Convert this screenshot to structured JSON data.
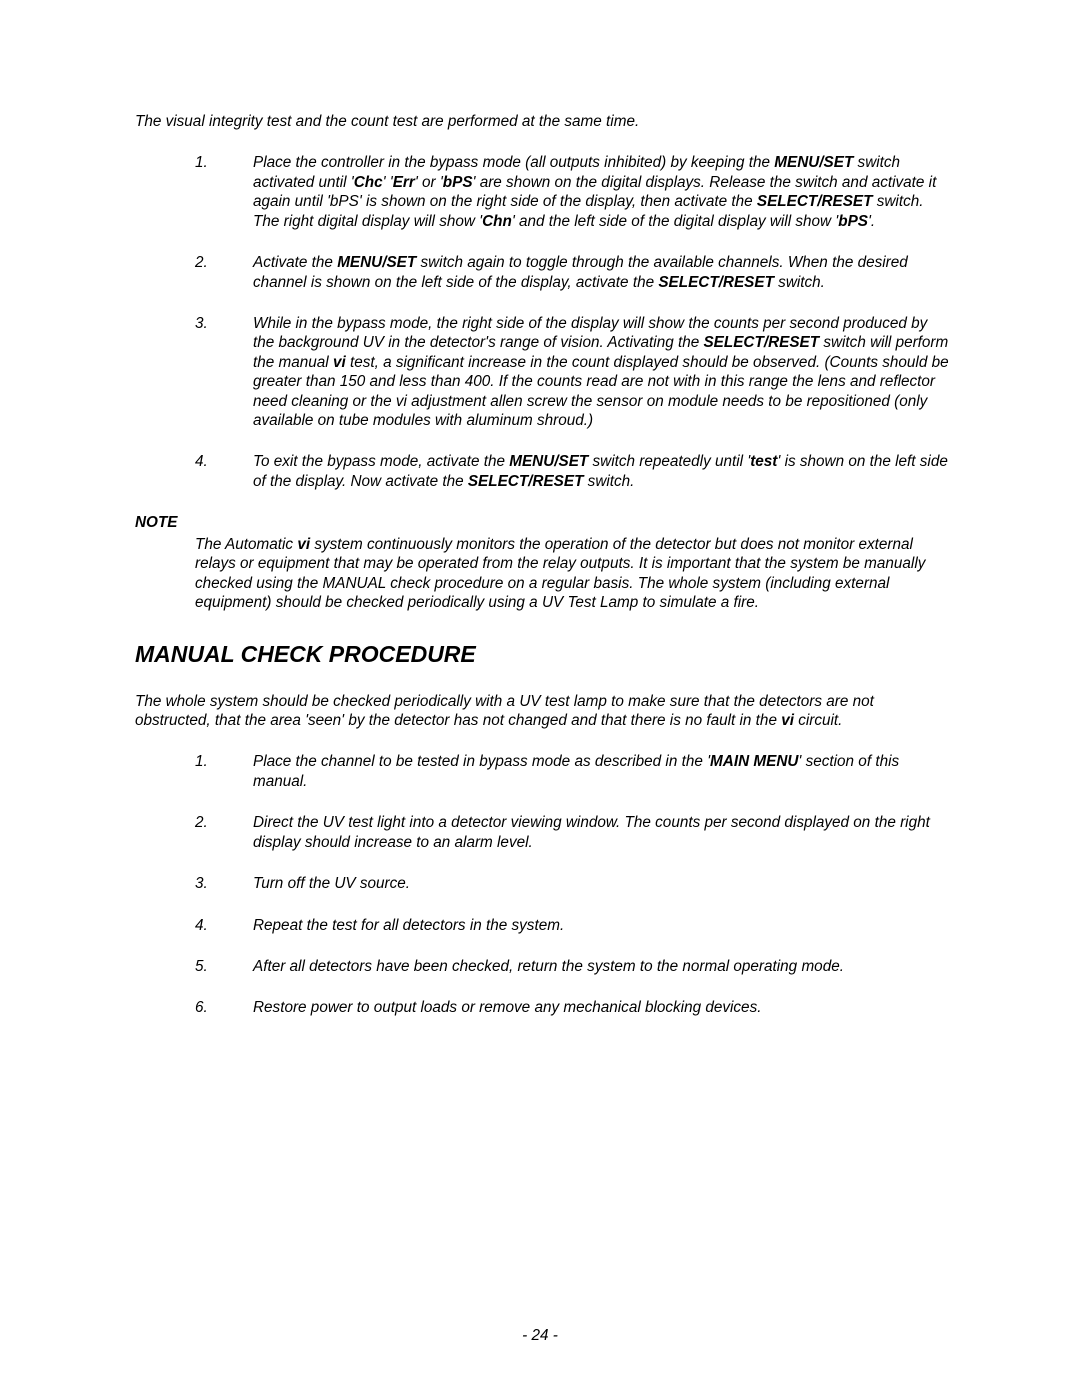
{
  "intro": "The visual integrity test and the count test are performed at the same time.",
  "list1": [
    {
      "num": "1.",
      "segments": [
        {
          "t": "Place the controller in the bypass mode (all outputs inhibited) by keeping the "
        },
        {
          "t": "MENU/SET",
          "b": true
        },
        {
          "t": " switch activated until '"
        },
        {
          "t": "Chc",
          "b": true
        },
        {
          "t": "' '"
        },
        {
          "t": "Err",
          "b": true
        },
        {
          "t": "' or '"
        },
        {
          "t": "bPS",
          "b": true
        },
        {
          "t": "' are shown on the digital displays. Release the switch and activate it again until 'bPS' is shown on the right side of the display, then activate the "
        },
        {
          "t": "SELECT/RESET",
          "b": true
        },
        {
          "t": " switch.  The right digital display  will show '"
        },
        {
          "t": "Chn",
          "b": true
        },
        {
          "t": "' and the left side of the digital  display  will show '"
        },
        {
          "t": "bPS",
          "b": true
        },
        {
          "t": "'."
        }
      ]
    },
    {
      "num": "2.",
      "segments": [
        {
          "t": "Activate the "
        },
        {
          "t": "MENU/SET",
          "b": true
        },
        {
          "t": " switch again to toggle through the available channels.  When the desired channel is shown on the left side of the display, activate the "
        },
        {
          "t": "SELECT/RESET",
          "b": true
        },
        {
          "t": " switch."
        }
      ]
    },
    {
      "num": "3.",
      "segments": [
        {
          "t": "While in the bypass mode, the right side of the display will show the counts per second produced by the background UV in the detector's range of vision.  Activating the "
        },
        {
          "t": "SELECT/RESET",
          "b": true
        },
        {
          "t": " switch will perform the manual "
        },
        {
          "t": "vi",
          "b": true
        },
        {
          "t": " test, a significant increase in the count displayed should be observed. (Counts should be greater than 150 and less than 400.  If the counts read are not with in this range the lens and reflector need cleaning or the vi adjustment allen screw  the sensor on module needs to be repositioned (only available on tube modules  with aluminum shroud.)"
        }
      ]
    },
    {
      "num": "4.",
      "segments": [
        {
          "t": "To exit the bypass mode, activate the "
        },
        {
          "t": "MENU/SET",
          "b": true
        },
        {
          "t": " switch repeatedly until '"
        },
        {
          "t": "test",
          "b": true
        },
        {
          "t": "' is shown on the left side of the display.  Now activate the "
        },
        {
          "t": "SELECT/RESET",
          "b": true
        },
        {
          "t": " switch."
        }
      ]
    }
  ],
  "note_label": "NOTE",
  "note_segments": [
    {
      "t": "The Automatic "
    },
    {
      "t": "vi",
      "b": true
    },
    {
      "t": " system continuously monitors the operation of the detector but does not monitor external relays or equipment that may be operated from the relay outputs.  It is important that the system be manually checked using the MANUAL check procedure on a regular basis.  The whole system (including external equipment) should be checked periodically using a UV Test Lamp to simulate a fire."
    }
  ],
  "heading": "MANUAL CHECK PROCEDURE",
  "para2_segments": [
    {
      "t": "The whole system should be checked periodically with a UV test lamp to make sure that the detectors are not obstructed, that the area 'seen' by the detector has not changed and that there is no fault in the "
    },
    {
      "t": "vi",
      "b": true
    },
    {
      "t": " circuit."
    }
  ],
  "list2": [
    {
      "num": "1.",
      "segments": [
        {
          "t": "Place the channel to be tested in bypass mode as described in the '"
        },
        {
          "t": "MAIN MENU",
          "b": true
        },
        {
          "t": "' section of this manual."
        }
      ]
    },
    {
      "num": "2.",
      "segments": [
        {
          "t": "Direct the UV test light into a detector viewing window.  The counts per second displayed on the right display should increase to an alarm level."
        }
      ]
    },
    {
      "num": "3.",
      "segments": [
        {
          "t": "Turn off the UV source."
        }
      ]
    },
    {
      "num": "4.",
      "segments": [
        {
          "t": "Repeat the test for all detectors in the system."
        }
      ]
    },
    {
      "num": "5.",
      "segments": [
        {
          "t": "After all detectors have been checked, return the system to the normal operating mode."
        }
      ]
    },
    {
      "num": "6.",
      "segments": [
        {
          "t": "Restore power to output loads or remove any mechanical blocking devices."
        }
      ]
    }
  ],
  "page_number": "- 24 -"
}
